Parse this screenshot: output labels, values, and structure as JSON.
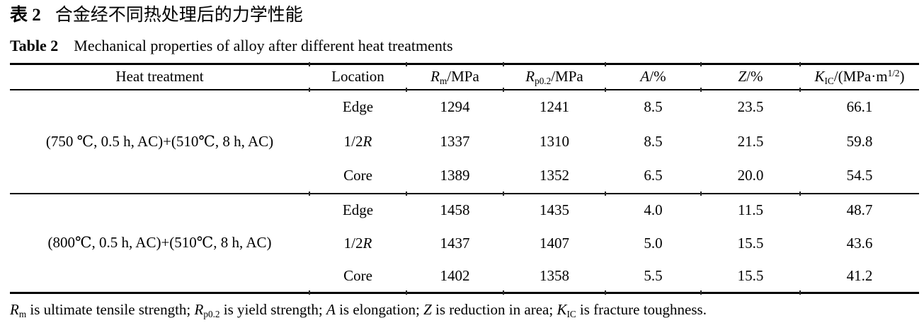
{
  "page": {
    "background": "#ffffff",
    "text_color": "#000000",
    "rule_color": "#000000"
  },
  "titles": {
    "chinese": {
      "label": "表 2",
      "text": "合金经不同热处理后的力学性能"
    },
    "english": {
      "label": "Table 2",
      "text": "Mechanical properties of alloy after different heat treatments"
    }
  },
  "table": {
    "columns": {
      "heat_treatment": [
        {
          "t": "Heat treatment"
        }
      ],
      "location": [
        {
          "t": "Location"
        }
      ],
      "rm": [
        {
          "t": "R",
          "s": "i"
        },
        {
          "t": "m",
          "s": "sub"
        },
        {
          "t": "/MPa"
        }
      ],
      "rp02": [
        {
          "t": "R",
          "s": "i"
        },
        {
          "t": "p0.2",
          "s": "sub"
        },
        {
          "t": "/MPa"
        }
      ],
      "a": [
        {
          "t": "A",
          "s": "i"
        },
        {
          "t": "/%"
        }
      ],
      "z": [
        {
          "t": "Z",
          "s": "i"
        },
        {
          "t": "/%"
        }
      ],
      "kic": [
        {
          "t": "K",
          "s": "i"
        },
        {
          "t": "IC",
          "s": "sub"
        },
        {
          "t": "/(MPa·m"
        },
        {
          "t": "1/2",
          "s": "sup"
        },
        {
          "t": ")"
        }
      ]
    },
    "groups": [
      {
        "heat_treatment": "(750 ℃, 0.5 h, AC)+(510℃, 8 h, AC)",
        "rows": [
          {
            "location": [
              {
                "t": "Edge"
              }
            ],
            "rm": "1294",
            "rp02": "1241",
            "a": "8.5",
            "z": "23.5",
            "kic": "66.1"
          },
          {
            "location": [
              {
                "t": "1/2"
              },
              {
                "t": "R",
                "s": "i"
              }
            ],
            "rm": "1337",
            "rp02": "1310",
            "a": "8.5",
            "z": "21.5",
            "kic": "59.8"
          },
          {
            "location": [
              {
                "t": "Core"
              }
            ],
            "rm": "1389",
            "rp02": "1352",
            "a": "6.5",
            "z": "20.0",
            "kic": "54.5"
          }
        ]
      },
      {
        "heat_treatment": "(800℃, 0.5 h, AC)+(510℃, 8 h, AC)",
        "rows": [
          {
            "location": [
              {
                "t": "Edge"
              }
            ],
            "rm": "1458",
            "rp02": "1435",
            "a": "4.0",
            "z": "11.5",
            "kic": "48.7"
          },
          {
            "location": [
              {
                "t": "1/2"
              },
              {
                "t": "R",
                "s": "i"
              }
            ],
            "rm": "1437",
            "rp02": "1407",
            "a": "5.0",
            "z": "15.5",
            "kic": "43.6"
          },
          {
            "location": [
              {
                "t": "Core"
              }
            ],
            "rm": "1402",
            "rp02": "1358",
            "a": "5.5",
            "z": "15.5",
            "kic": "41.2"
          }
        ]
      }
    ],
    "footnote": [
      {
        "t": "R",
        "s": "i"
      },
      {
        "t": "m",
        "s": "sub"
      },
      {
        "t": " is ultimate tensile strength; "
      },
      {
        "t": "R",
        "s": "i"
      },
      {
        "t": "p0.2",
        "s": "sub"
      },
      {
        "t": " is yield strength; "
      },
      {
        "t": "A",
        "s": "i"
      },
      {
        "t": " is elongation; "
      },
      {
        "t": "Z",
        "s": "i"
      },
      {
        "t": " is reduction in area; "
      },
      {
        "t": "K",
        "s": "i"
      },
      {
        "t": "IC",
        "s": "sub"
      },
      {
        "t": " is fracture toughness."
      }
    ]
  }
}
